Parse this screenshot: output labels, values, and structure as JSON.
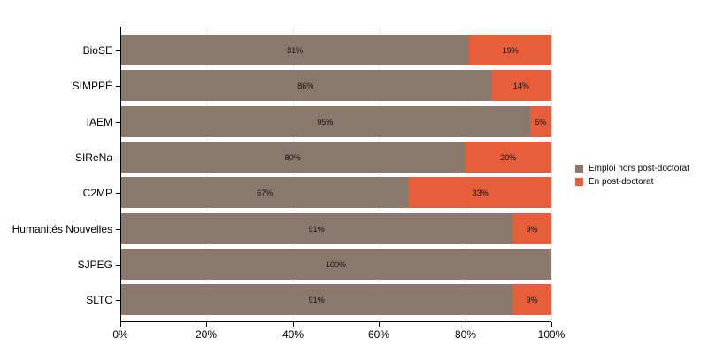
{
  "chart_data": {
    "type": "bar",
    "orientation": "horizontal",
    "stacked": true,
    "normalized": true,
    "title": "",
    "xlabel": "",
    "ylabel": "",
    "xlim": [
      0,
      100
    ],
    "x_ticks": [
      "0%",
      "20%",
      "40%",
      "60%",
      "80%",
      "100%"
    ],
    "grid": true,
    "legend_position": "right",
    "categories": [
      "BioSE",
      "SIMPPÉ",
      "IAEM",
      "SIReNa",
      "C2MP",
      "Humanités Nouvelles",
      "SJPEG",
      "SLTC"
    ],
    "series": [
      {
        "name": "Emploi hors post-doctorat",
        "color": "#8b786d",
        "values": [
          81,
          86,
          95,
          80,
          67,
          91,
          100,
          91
        ],
        "labels": [
          "81%",
          "86%",
          "95%",
          "80%",
          "67%",
          "91%",
          "100%",
          "91%"
        ]
      },
      {
        "name": "En post-doctorat",
        "color": "#e85d3a",
        "values": [
          19,
          14,
          5,
          20,
          33,
          9,
          0,
          9
        ],
        "labels": [
          "19%",
          "14%",
          "5%",
          "20%",
          "33%",
          "9%",
          "",
          "9%"
        ]
      }
    ]
  },
  "legend": {
    "items": [
      {
        "label": "Emploi hors post-doctorat",
        "color": "#8b786d"
      },
      {
        "label": "En post-doctorat",
        "color": "#e85d3a"
      }
    ]
  }
}
